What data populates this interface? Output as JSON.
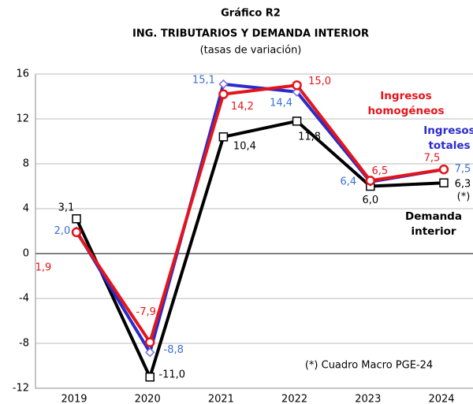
{
  "chart_data": {
    "type": "line",
    "title": "Gráfico R2",
    "subtitle": "ING. TRIBUTARIOS Y DEMANDA INTERIOR",
    "y_label": "(tasas de variación)",
    "annotations": [
      "(*)",
      "(*) Cuadro Macro PGE-24"
    ],
    "categories": [
      "2019",
      "2020",
      "2021",
      "2022",
      "2023",
      "2024"
    ],
    "series": [
      {
        "name": "Ingresos homogéneos",
        "color": "#e3151b",
        "values": [
          1.9,
          -7.9,
          14.2,
          15.0,
          6.5,
          7.5
        ],
        "value_labels": [
          "1,9",
          "-7,9",
          "14,2",
          "15,0",
          "6,5",
          "7,5"
        ]
      },
      {
        "name": "Ingresos totales",
        "color": "#2b2bcc",
        "values": [
          2.0,
          -8.8,
          15.1,
          14.4,
          6.4,
          7.5
        ],
        "value_labels": [
          "2,0",
          "-8,8",
          "15,1",
          "14,4",
          "6,4",
          "7,5"
        ]
      },
      {
        "name": "Demanda interior",
        "color": "#000000",
        "values": [
          3.1,
          -11.0,
          10.4,
          11.8,
          6.0,
          6.3
        ],
        "value_labels": [
          "3,1",
          "-11,0",
          "10,4",
          "11,8",
          "6,0",
          "6,3"
        ]
      }
    ],
    "ylim": [
      -12,
      16
    ],
    "yticks": [
      -12,
      -8,
      -4,
      0,
      4,
      8,
      12,
      16
    ],
    "grid": true
  }
}
